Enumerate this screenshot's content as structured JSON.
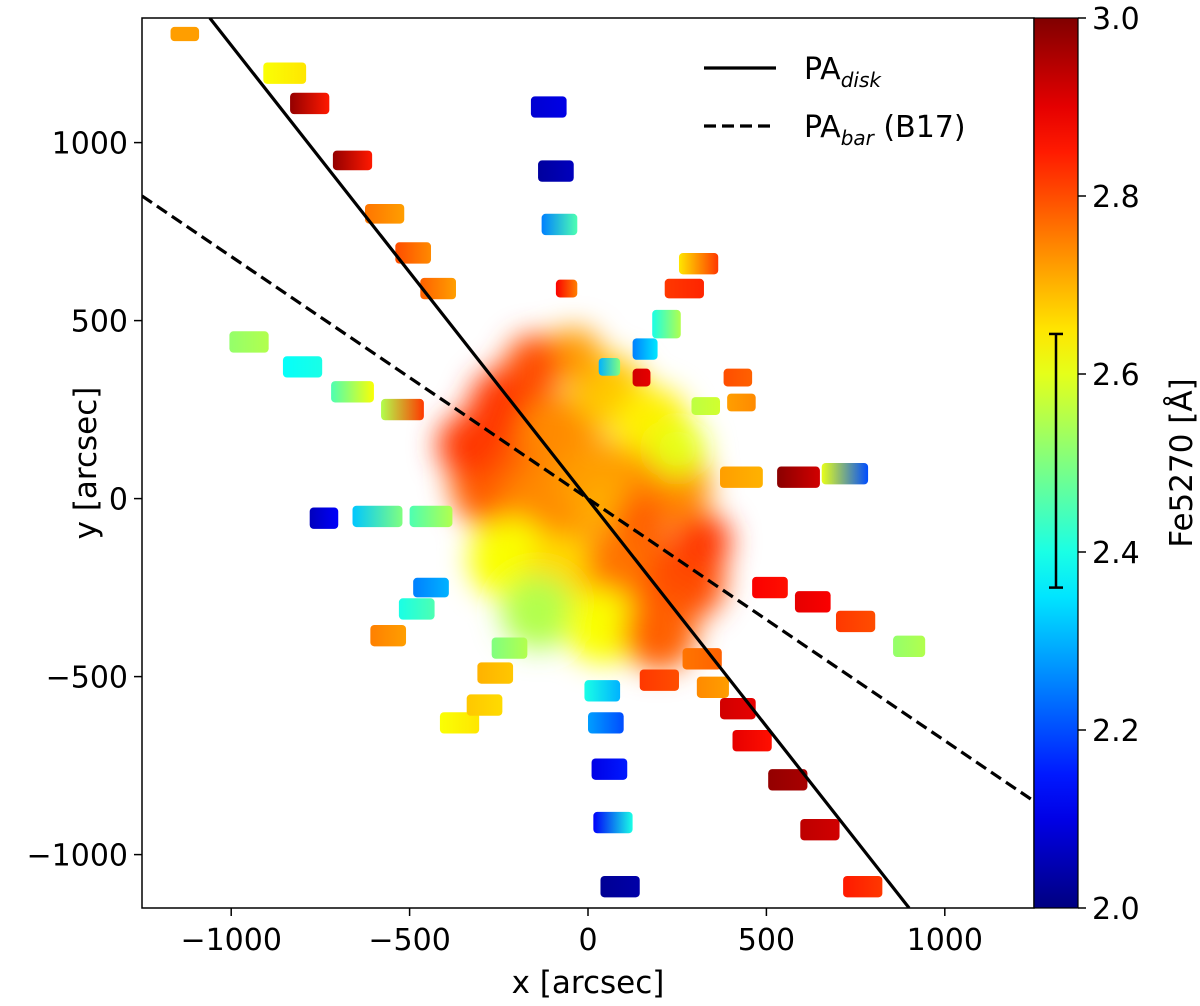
{
  "chart_data": {
    "type": "scatter",
    "title": "",
    "xlabel": "x [arcsec]",
    "ylabel": "y [arcsec]",
    "xlim": [
      -1250,
      1250
    ],
    "ylim": [
      -1150,
      1350
    ],
    "xticks": [
      -1000,
      -500,
      0,
      500,
      1000
    ],
    "xtick_labels": [
      "−1000",
      "−500",
      "0",
      "500",
      "1000"
    ],
    "yticks": [
      -1000,
      -500,
      0,
      500,
      1000
    ],
    "ytick_labels": [
      "−1000",
      "−500",
      "0",
      "500",
      "1000"
    ],
    "grid": false,
    "colorbar": {
      "label": "Fe5270 [Å]",
      "range": [
        2.0,
        3.0
      ],
      "ticks": [
        2.0,
        2.2,
        2.4,
        2.6,
        2.8,
        3.0
      ],
      "tick_labels": [
        "2.0",
        "2.2",
        "2.4",
        "2.6",
        "2.8",
        "3.0"
      ],
      "colormap": "jet",
      "error_bar": [
        2.36,
        2.645
      ]
    },
    "lines": [
      {
        "name": "PA_disk",
        "legend_main": "PA",
        "legend_sub": "disk",
        "legend_suffix": "",
        "style": "solid",
        "x": [
          -1060,
          900
        ],
        "y": [
          1350,
          -1150
        ]
      },
      {
        "name": "PA_bar (B17)",
        "legend_main": "PA",
        "legend_sub": "bar",
        "legend_suffix": " (B17)",
        "style": "dashed",
        "x": [
          -1250,
          1250
        ],
        "y": [
          850,
          -850
        ]
      }
    ],
    "legend_location": "top-right",
    "core_blobs": [
      {
        "x": -210,
        "y": 250,
        "r": 110,
        "v": 2.82
      },
      {
        "x": -80,
        "y": 180,
        "r": 100,
        "v": 2.74
      },
      {
        "x": 60,
        "y": 300,
        "r": 90,
        "v": 2.68
      },
      {
        "x": 180,
        "y": 210,
        "r": 90,
        "v": 2.64
      },
      {
        "x": -260,
        "y": 40,
        "r": 110,
        "v": 2.78
      },
      {
        "x": -110,
        "y": -40,
        "r": 120,
        "v": 2.74
      },
      {
        "x": 40,
        "y": 40,
        "r": 110,
        "v": 2.72
      },
      {
        "x": 230,
        "y": 40,
        "r": 100,
        "v": 2.74
      },
      {
        "x": -220,
        "y": -170,
        "r": 100,
        "v": 2.62
      },
      {
        "x": -60,
        "y": -230,
        "r": 110,
        "v": 2.66
      },
      {
        "x": 120,
        "y": -180,
        "r": 110,
        "v": 2.76
      },
      {
        "x": 270,
        "y": -230,
        "r": 100,
        "v": 2.8
      },
      {
        "x": -140,
        "y": -320,
        "r": 90,
        "v": 2.55
      },
      {
        "x": 40,
        "y": -360,
        "r": 90,
        "v": 2.62
      },
      {
        "x": 200,
        "y": -380,
        "r": 90,
        "v": 2.78
      },
      {
        "x": 320,
        "y": -120,
        "r": 70,
        "v": 2.82
      },
      {
        "x": -330,
        "y": 150,
        "r": 80,
        "v": 2.82
      },
      {
        "x": 250,
        "y": 140,
        "r": 70,
        "v": 2.6
      },
      {
        "x": -40,
        "y": 400,
        "r": 70,
        "v": 2.72
      },
      {
        "x": 60,
        "y": -30,
        "r": 60,
        "v": 2.7
      },
      {
        "x": -150,
        "y": 380,
        "r": 70,
        "v": 2.8
      },
      {
        "x": 150,
        "y": -60,
        "r": 70,
        "v": 2.78
      }
    ],
    "patches": [
      {
        "x": -1130,
        "y": 1305,
        "w": 80,
        "h": 40,
        "v0": 2.72,
        "v1": 2.72
      },
      {
        "x": -850,
        "y": 1195,
        "w": 120,
        "h": 60,
        "v0": 2.62,
        "v1": 2.65
      },
      {
        "x": -780,
        "y": 1110,
        "w": 110,
        "h": 60,
        "v0": 2.98,
        "v1": 2.85
      },
      {
        "x": -660,
        "y": 950,
        "w": 110,
        "h": 55,
        "v0": 2.98,
        "v1": 2.85
      },
      {
        "x": -570,
        "y": 800,
        "w": 110,
        "h": 55,
        "v0": 2.76,
        "v1": 2.72
      },
      {
        "x": -490,
        "y": 690,
        "w": 100,
        "h": 60,
        "v0": 2.8,
        "v1": 2.74
      },
      {
        "x": -420,
        "y": 590,
        "w": 100,
        "h": 60,
        "v0": 2.78,
        "v1": 2.72
      },
      {
        "x": -950,
        "y": 440,
        "w": 110,
        "h": 60,
        "v0": 2.52,
        "v1": 2.55
      },
      {
        "x": -800,
        "y": 370,
        "w": 110,
        "h": 60,
        "v0": 2.38,
        "v1": 2.4
      },
      {
        "x": -660,
        "y": 300,
        "w": 120,
        "h": 60,
        "v0": 2.45,
        "v1": 2.62
      },
      {
        "x": -520,
        "y": 250,
        "w": 120,
        "h": 60,
        "v0": 2.55,
        "v1": 2.82
      },
      {
        "x": -740,
        "y": -55,
        "w": 80,
        "h": 60,
        "v0": 2.06,
        "v1": 2.12
      },
      {
        "x": -590,
        "y": -50,
        "w": 140,
        "h": 60,
        "v0": 2.32,
        "v1": 2.5
      },
      {
        "x": -440,
        "y": -50,
        "w": 120,
        "h": 60,
        "v0": 2.45,
        "v1": 2.55
      },
      {
        "x": -560,
        "y": -385,
        "w": 100,
        "h": 60,
        "v0": 2.75,
        "v1": 2.72
      },
      {
        "x": -480,
        "y": -310,
        "w": 100,
        "h": 60,
        "v0": 2.4,
        "v1": 2.45
      },
      {
        "x": -440,
        "y": -250,
        "w": 100,
        "h": 55,
        "v0": 2.25,
        "v1": 2.3
      },
      {
        "x": -360,
        "y": -630,
        "w": 110,
        "h": 60,
        "v0": 2.62,
        "v1": 2.65
      },
      {
        "x": -290,
        "y": -580,
        "w": 100,
        "h": 60,
        "v0": 2.68,
        "v1": 2.66
      },
      {
        "x": -260,
        "y": -490,
        "w": 100,
        "h": 60,
        "v0": 2.7,
        "v1": 2.68
      },
      {
        "x": -220,
        "y": -420,
        "w": 100,
        "h": 60,
        "v0": 2.5,
        "v1": 2.55
      },
      {
        "x": -110,
        "y": 1100,
        "w": 100,
        "h": 60,
        "v0": 2.08,
        "v1": 2.1
      },
      {
        "x": -90,
        "y": 920,
        "w": 100,
        "h": 60,
        "v0": 2.03,
        "v1": 2.06
      },
      {
        "x": -80,
        "y": 770,
        "w": 100,
        "h": 60,
        "v0": 2.25,
        "v1": 2.45
      },
      {
        "x": -60,
        "y": 590,
        "w": 60,
        "h": 50,
        "v0": 2.88,
        "v1": 2.75
      },
      {
        "x": 310,
        "y": 660,
        "w": 110,
        "h": 60,
        "v0": 2.65,
        "v1": 2.82
      },
      {
        "x": 270,
        "y": 590,
        "w": 110,
        "h": 55,
        "v0": 2.82,
        "v1": 2.84
      },
      {
        "x": 220,
        "y": 490,
        "w": 80,
        "h": 80,
        "v0": 2.4,
        "v1": 2.55
      },
      {
        "x": 160,
        "y": 420,
        "w": 70,
        "h": 60,
        "v0": 2.25,
        "v1": 2.35
      },
      {
        "x": 60,
        "y": 370,
        "w": 60,
        "h": 50,
        "v0": 2.3,
        "v1": 2.5
      },
      {
        "x": 150,
        "y": 340,
        "w": 50,
        "h": 50,
        "v0": 2.92,
        "v1": 2.9
      },
      {
        "x": 420,
        "y": 340,
        "w": 80,
        "h": 50,
        "v0": 2.8,
        "v1": 2.78
      },
      {
        "x": 430,
        "y": 270,
        "w": 80,
        "h": 50,
        "v0": 2.72,
        "v1": 2.74
      },
      {
        "x": 330,
        "y": 260,
        "w": 80,
        "h": 50,
        "v0": 2.56,
        "v1": 2.58
      },
      {
        "x": 430,
        "y": 60,
        "w": 120,
        "h": 60,
        "v0": 2.72,
        "v1": 2.7
      },
      {
        "x": 590,
        "y": 60,
        "w": 120,
        "h": 60,
        "v0": 2.99,
        "v1": 2.92
      },
      {
        "x": 720,
        "y": 70,
        "w": 130,
        "h": 60,
        "v0": 2.6,
        "v1": 2.2
      },
      {
        "x": 510,
        "y": -250,
        "w": 100,
        "h": 60,
        "v0": 2.88,
        "v1": 2.86
      },
      {
        "x": 630,
        "y": -290,
        "w": 100,
        "h": 60,
        "v0": 2.9,
        "v1": 2.88
      },
      {
        "x": 750,
        "y": -345,
        "w": 110,
        "h": 60,
        "v0": 2.82,
        "v1": 2.8
      },
      {
        "x": 900,
        "y": -415,
        "w": 90,
        "h": 60,
        "v0": 2.52,
        "v1": 2.55
      },
      {
        "x": 320,
        "y": -450,
        "w": 110,
        "h": 60,
        "v0": 2.76,
        "v1": 2.78
      },
      {
        "x": 200,
        "y": -510,
        "w": 110,
        "h": 60,
        "v0": 2.82,
        "v1": 2.8
      },
      {
        "x": 350,
        "y": -530,
        "w": 90,
        "h": 60,
        "v0": 2.74,
        "v1": 2.72
      },
      {
        "x": 420,
        "y": -590,
        "w": 100,
        "h": 60,
        "v0": 2.92,
        "v1": 2.9
      },
      {
        "x": 460,
        "y": -680,
        "w": 110,
        "h": 60,
        "v0": 2.9,
        "v1": 2.86
      },
      {
        "x": 560,
        "y": -790,
        "w": 110,
        "h": 60,
        "v0": 2.98,
        "v1": 2.96
      },
      {
        "x": 650,
        "y": -930,
        "w": 110,
        "h": 60,
        "v0": 2.94,
        "v1": 2.92
      },
      {
        "x": 770,
        "y": -1090,
        "w": 110,
        "h": 60,
        "v0": 2.85,
        "v1": 2.82
      },
      {
        "x": 40,
        "y": -540,
        "w": 100,
        "h": 60,
        "v0": 2.4,
        "v1": 2.3
      },
      {
        "x": 50,
        "y": -630,
        "w": 100,
        "h": 60,
        "v0": 2.28,
        "v1": 2.2
      },
      {
        "x": 60,
        "y": -760,
        "w": 100,
        "h": 60,
        "v0": 2.1,
        "v1": 2.15
      },
      {
        "x": 70,
        "y": -910,
        "w": 110,
        "h": 60,
        "v0": 2.12,
        "v1": 2.4
      },
      {
        "x": 90,
        "y": -1090,
        "w": 110,
        "h": 60,
        "v0": 2.02,
        "v1": 2.04
      }
    ]
  }
}
